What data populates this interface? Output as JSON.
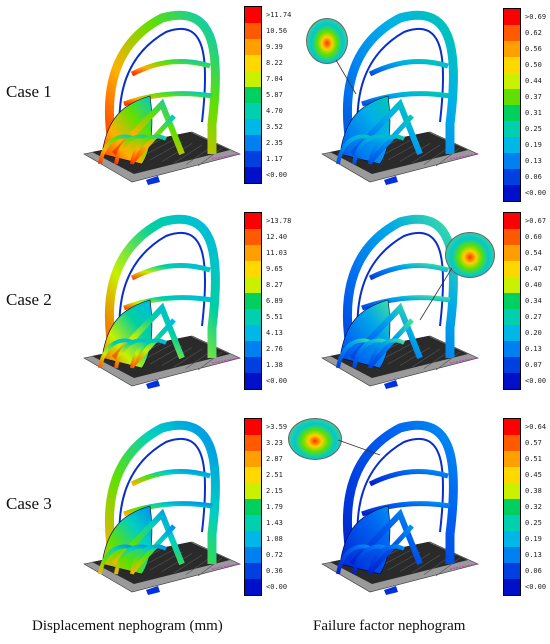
{
  "rows": [
    {
      "case_label": "Case 1",
      "displacement": {
        "ticks": [
          ">11.74",
          "10.56",
          "9.39",
          "8.22",
          "7.04",
          "5.87",
          "4.70",
          "3.52",
          "2.35",
          "1.17",
          "<0.00"
        ]
      },
      "failure": {
        "ticks": [
          ">0.69",
          "0.62",
          "0.56",
          "0.50",
          "0.44",
          "0.37",
          "0.31",
          "0.25",
          "0.19",
          "0.13",
          "0.06",
          "<0.00"
        ]
      }
    },
    {
      "case_label": "Case 2",
      "displacement": {
        "ticks": [
          ">13.78",
          "12.40",
          "11.03",
          "9.65",
          "8.27",
          "6.89",
          "5.51",
          "4.13",
          "2.76",
          "1.38",
          "<0.00"
        ]
      },
      "failure": {
        "ticks": [
          ">0.67",
          "0.60",
          "0.54",
          "0.47",
          "0.40",
          "0.34",
          "0.27",
          "0.20",
          "0.13",
          "0.07",
          "<0.00"
        ]
      }
    },
    {
      "case_label": "Case 3",
      "displacement": {
        "ticks": [
          ">3.59",
          "3.23",
          "2.87",
          "2.51",
          "2.15",
          "1.79",
          "1.43",
          "1.08",
          "0.72",
          "0.36",
          "<0.00"
        ]
      },
      "failure": {
        "ticks": [
          ">0.64",
          "0.57",
          "0.51",
          "0.45",
          "0.38",
          "0.32",
          "0.25",
          "0.19",
          "0.13",
          "0.06",
          "<0.00"
        ]
      }
    }
  ],
  "captions": {
    "left": "Displacement nephogram (mm)",
    "right": "Failure factor nephogram"
  },
  "colors": {
    "scale": [
      "#ff0000",
      "#ff5a00",
      "#ffa000",
      "#ffd800",
      "#c8f000",
      "#60e000",
      "#00d060",
      "#00d0b0",
      "#00b8e8",
      "#0080f0",
      "#0040e0",
      "#0010c8"
    ],
    "frame_dark": "#0a2fc8",
    "base_grey": "#8a8a8a"
  }
}
